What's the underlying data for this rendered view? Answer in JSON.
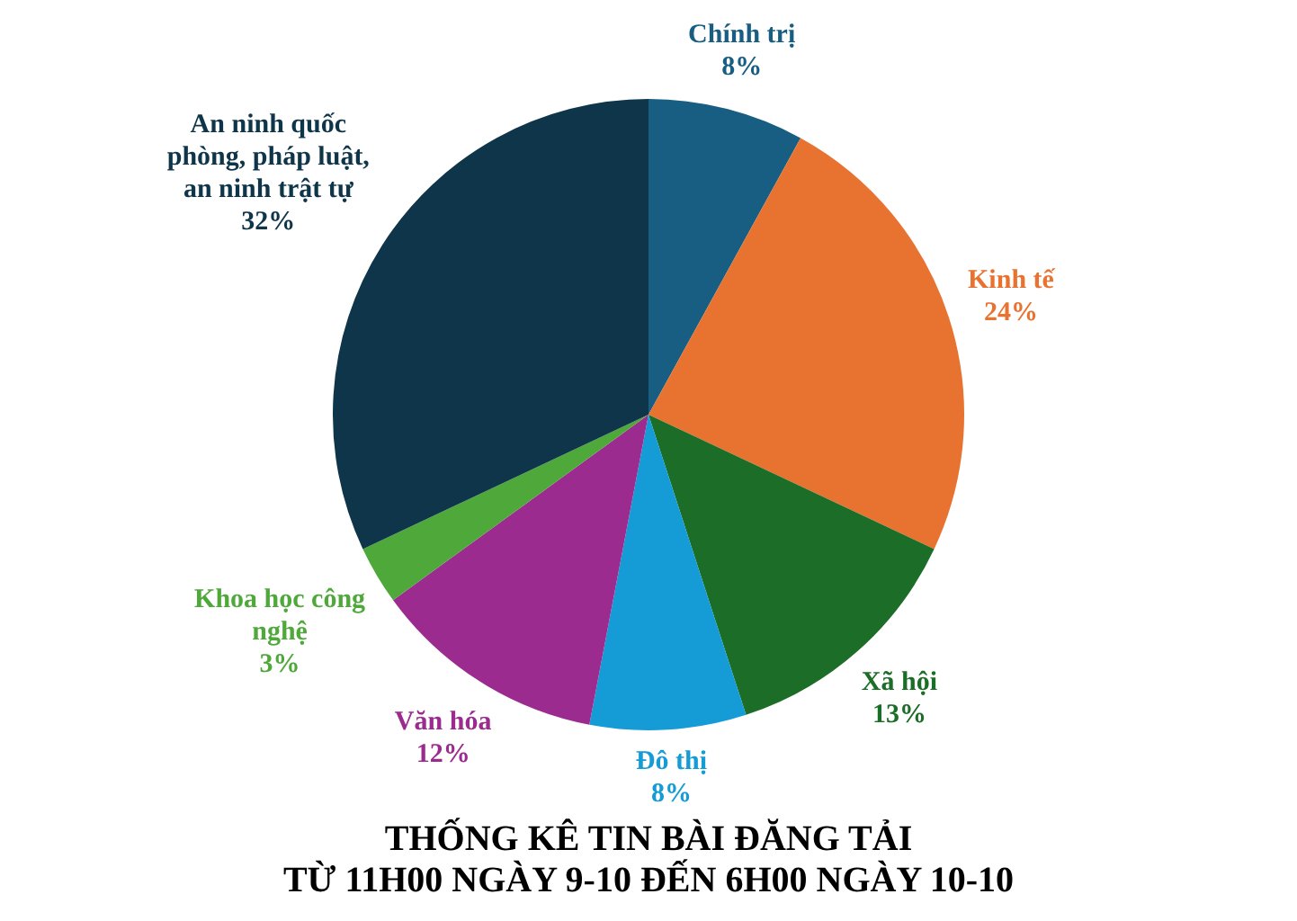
{
  "chart_data": {
    "type": "pie",
    "title": "THỐNG KÊ TIN BÀI ĐĂNG TẢI",
    "subtitle": "TỪ 11H00 NGÀY 9-10 ĐẾN 6H00 NGÀY 10-10",
    "categories": [
      "Chính trị",
      "Kinh tế",
      "Xã hội",
      "Đô thị",
      "Văn hóa",
      "Khoa học công nghệ",
      "An ninh quốc phòng, pháp luật, an ninh trật tự"
    ],
    "values": [
      8,
      24,
      13,
      8,
      12,
      3,
      32
    ],
    "value_labels": [
      "8%",
      "24%",
      "13%",
      "8%",
      "12%",
      "3%",
      "32%"
    ],
    "colors": [
      "#175e82",
      "#e87331",
      "#1b6d27",
      "#159bd5",
      "#9c2b90",
      "#4fa83a",
      "#0e3549"
    ]
  }
}
